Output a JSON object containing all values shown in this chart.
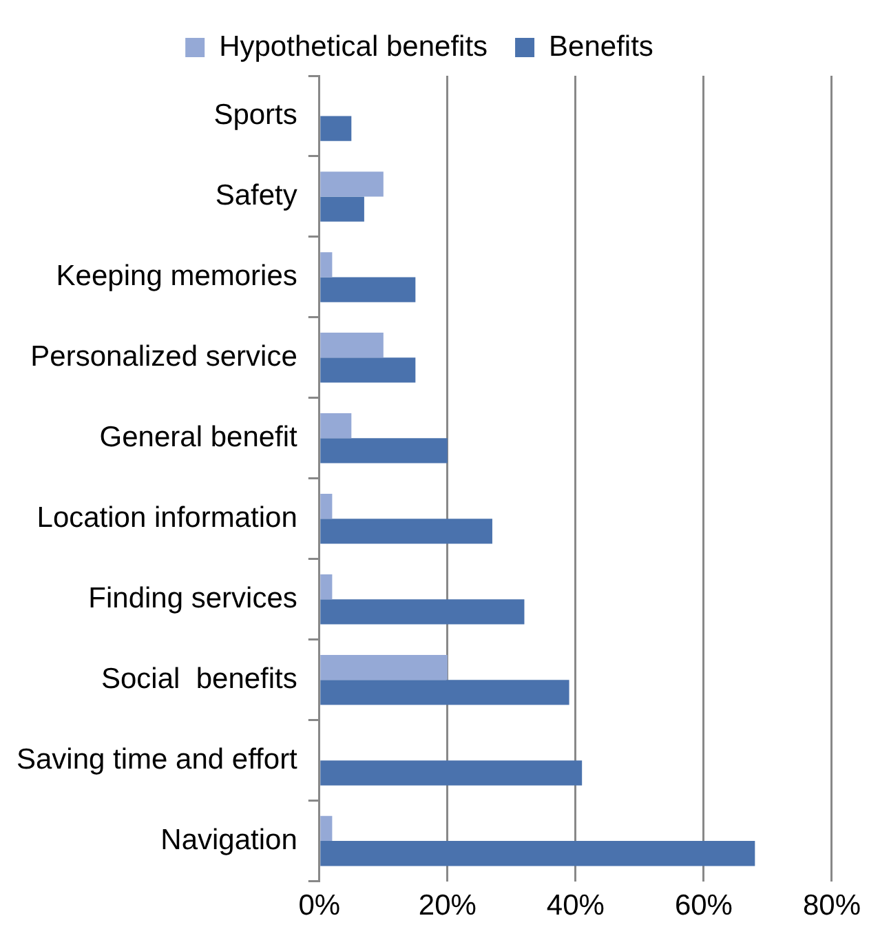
{
  "chart_data": {
    "type": "bar",
    "orientation": "horizontal",
    "categories": [
      "Sports",
      "Safety",
      "Keeping memories",
      "Personalized service",
      "General benefit",
      "Location information",
      "Finding services",
      "Social  benefits",
      "Saving time and effort",
      "Navigation"
    ],
    "series": [
      {
        "name": "Hypothetical benefits",
        "color": "#95a9d6",
        "values": [
          null,
          10,
          2,
          10,
          5,
          2,
          2,
          20,
          null,
          2
        ]
      },
      {
        "name": "Benefits",
        "color": "#4a72ad",
        "values": [
          5,
          7,
          15,
          15,
          20,
          27,
          32,
          39,
          41,
          68
        ]
      }
    ],
    "xlim": [
      0,
      80
    ],
    "xticks": [
      {
        "value": 0,
        "label": "0%"
      },
      {
        "value": 20,
        "label": "20%"
      },
      {
        "value": 40,
        "label": "40%"
      },
      {
        "value": 60,
        "label": "60%"
      },
      {
        "value": 80,
        "label": "80%"
      }
    ],
    "grid": "x",
    "legend": "top"
  }
}
